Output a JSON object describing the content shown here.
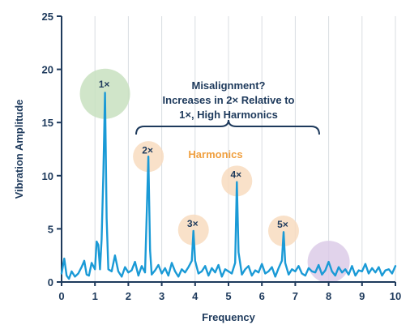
{
  "chart_data": {
    "type": "line",
    "xlabel": "Frequency",
    "ylabel": "Vibration Amplitude",
    "xlim": [
      0,
      10
    ],
    "ylim": [
      0,
      25
    ],
    "x_ticks": [
      "0",
      "1",
      "2",
      "3",
      "4",
      "5",
      "6",
      "7",
      "8",
      "9",
      "10"
    ],
    "y_ticks": [
      "0",
      "5",
      "10",
      "15",
      "20",
      "25"
    ],
    "grid": "vertical",
    "series": [
      {
        "color": "#1a9ad6",
        "x": [
          0.0,
          0.08,
          0.15,
          0.22,
          0.3,
          0.4,
          0.5,
          0.6,
          0.68,
          0.75,
          0.82,
          0.9,
          1.0,
          1.05,
          1.1,
          1.15,
          1.2,
          1.25,
          1.3,
          1.35,
          1.4,
          1.5,
          1.6,
          1.7,
          1.8,
          1.9,
          2.0,
          2.1,
          2.2,
          2.3,
          2.4,
          2.5,
          2.6,
          2.65,
          2.7,
          2.8,
          2.9,
          3.0,
          3.1,
          3.2,
          3.3,
          3.4,
          3.5,
          3.6,
          3.7,
          3.8,
          3.9,
          3.95,
          4.0,
          4.1,
          4.2,
          4.3,
          4.4,
          4.5,
          4.6,
          4.7,
          4.8,
          4.9,
          5.0,
          5.1,
          5.2,
          5.25,
          5.3,
          5.4,
          5.5,
          5.6,
          5.7,
          5.8,
          5.9,
          6.0,
          6.1,
          6.2,
          6.3,
          6.4,
          6.5,
          6.6,
          6.65,
          6.7,
          6.8,
          6.9,
          7.0,
          7.1,
          7.2,
          7.3,
          7.4,
          7.5,
          7.6,
          7.7,
          7.8,
          7.9,
          8.0,
          8.1,
          8.2,
          8.3,
          8.4,
          8.5,
          8.6,
          8.7,
          8.8,
          8.9,
          9.0,
          9.1,
          9.2,
          9.3,
          9.4,
          9.5,
          9.6,
          9.7,
          9.8,
          9.9,
          10.0
        ],
        "values": [
          0.8,
          2.2,
          0.6,
          0.3,
          1.0,
          0.5,
          0.8,
          1.4,
          2.0,
          0.7,
          0.6,
          1.8,
          1.2,
          3.8,
          3.5,
          1.2,
          4.0,
          10.0,
          17.8,
          6.0,
          1.2,
          1.0,
          2.5,
          1.0,
          0.5,
          1.4,
          0.9,
          1.1,
          1.9,
          0.6,
          1.5,
          0.9,
          11.8,
          3.0,
          0.7,
          1.1,
          1.6,
          0.8,
          1.3,
          0.6,
          1.8,
          1.0,
          0.5,
          1.2,
          0.9,
          1.4,
          2.0,
          4.8,
          2.0,
          0.8,
          1.0,
          1.5,
          0.6,
          1.3,
          0.9,
          1.6,
          0.5,
          1.2,
          1.0,
          0.8,
          1.8,
          9.4,
          2.8,
          0.7,
          1.2,
          1.5,
          0.6,
          1.1,
          0.9,
          1.7,
          0.8,
          1.0,
          1.4,
          0.5,
          1.3,
          2.0,
          4.7,
          1.8,
          0.7,
          1.2,
          1.0,
          1.5,
          0.8,
          0.6,
          1.3,
          1.0,
          0.9,
          1.6,
          0.7,
          1.1,
          1.9,
          1.0,
          0.6,
          1.4,
          0.9,
          1.2,
          0.7,
          1.5,
          0.6,
          1.1,
          1.0,
          1.7,
          0.8,
          1.3,
          0.9,
          1.4,
          0.6,
          1.1,
          1.2,
          0.8,
          1.5
        ]
      }
    ],
    "peaks": [
      {
        "label": "1×",
        "x": 1.3,
        "y": 17.8,
        "color": "#c8e0c0",
        "circle_y": 17.7,
        "label_y": 18.6
      },
      {
        "label": "2×",
        "x": 2.6,
        "y": 11.8,
        "color": "#f8dcc0",
        "circle_y": 11.8,
        "label_y": 12.4
      },
      {
        "label": "3×",
        "x": 3.95,
        "y": 4.8,
        "color": "#f8dcc0",
        "circle_y": 4.9,
        "label_y": 5.5
      },
      {
        "label": "4×",
        "x": 5.25,
        "y": 9.4,
        "color": "#f8dcc0",
        "circle_y": 9.5,
        "label_y": 10.1
      },
      {
        "label": "5×",
        "x": 6.65,
        "y": 4.7,
        "color": "#f8dcc0",
        "circle_y": 4.8,
        "label_y": 5.4
      },
      {
        "label": "",
        "x": 8.0,
        "y": 1.9,
        "color": "#dccbe8",
        "circle_y": 1.9,
        "label_y": 0
      }
    ],
    "annotation": {
      "lines": [
        "Misalignment?",
        "Increases in 2× Relative to",
        "1×, High Harmonics"
      ]
    },
    "harmonics_label": {
      "text": "Harmonics",
      "color": "#f0a040"
    },
    "colors": {
      "axis": "#1e3a5c",
      "grid": "#d8dde2",
      "line": "#1a9ad6"
    }
  }
}
